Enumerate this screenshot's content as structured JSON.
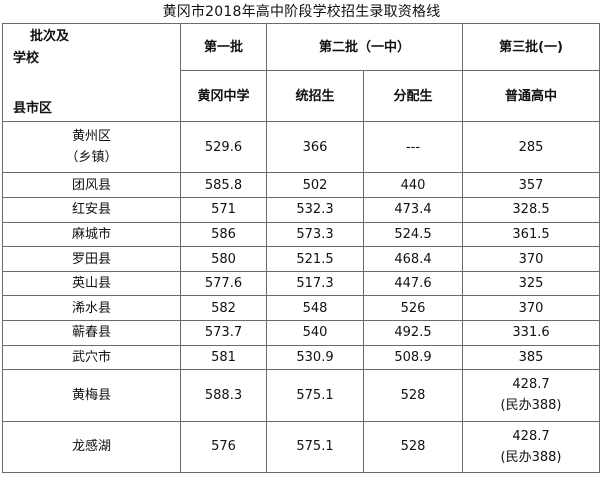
{
  "title": "黄冈市2018年高中阶段学校招生录取资格线",
  "header": {
    "corner": {
      "line1": "批次及",
      "line2": "学校",
      "line3": "县市区"
    },
    "batches": [
      "第一批",
      "第二批（一中）",
      "第三批(一)"
    ],
    "schools": [
      "黄冈中学",
      "统招生",
      "分配生",
      "普通高中"
    ]
  },
  "rows": [
    {
      "district": [
        "黄州区",
        "（乡镇）"
      ],
      "first": "529.6",
      "unified": "366",
      "allocated": "---",
      "third": [
        "285"
      ]
    },
    {
      "district": [
        "团风县"
      ],
      "first": "585.8",
      "unified": "502",
      "allocated": "440",
      "third": [
        "357"
      ]
    },
    {
      "district": [
        "红安县"
      ],
      "first": "571",
      "unified": "532.3",
      "allocated": "473.4",
      "third": [
        "328.5"
      ]
    },
    {
      "district": [
        "麻城市"
      ],
      "first": "586",
      "unified": "573.3",
      "allocated": "524.5",
      "third": [
        "361.5"
      ]
    },
    {
      "district": [
        "罗田县"
      ],
      "first": "580",
      "unified": "521.5",
      "allocated": "468.4",
      "third": [
        "370"
      ]
    },
    {
      "district": [
        "英山县"
      ],
      "first": "577.6",
      "unified": "517.3",
      "allocated": "447.6",
      "third": [
        "325"
      ]
    },
    {
      "district": [
        "浠水县"
      ],
      "first": "582",
      "unified": "548",
      "allocated": "526",
      "third": [
        "370"
      ]
    },
    {
      "district": [
        "蕲春县"
      ],
      "first": "573.7",
      "unified": "540",
      "allocated": "492.5",
      "third": [
        "331.6"
      ]
    },
    {
      "district": [
        "武穴市"
      ],
      "first": "581",
      "unified": "530.9",
      "allocated": "508.9",
      "third": [
        "385"
      ]
    },
    {
      "district": [
        "黄梅县"
      ],
      "first": "588.3",
      "unified": "575.1",
      "allocated": "528",
      "third": [
        "428.7",
        "(民办388)"
      ]
    },
    {
      "district": [
        "龙感湖"
      ],
      "first": "576",
      "unified": "575.1",
      "allocated": "528",
      "third": [
        "428.7",
        "(民办388)"
      ]
    }
  ]
}
